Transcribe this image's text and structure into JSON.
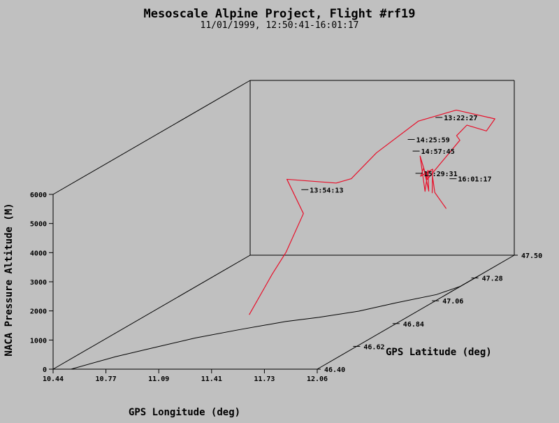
{
  "chart_data": {
    "type": "line",
    "projection": "3d",
    "title": "Mesoscale Alpine Project, Flight #rf19",
    "subtitle": "11/01/1999, 12:50:41-16:01:17",
    "xlabel": "GPS Longitude (deg)",
    "ylabel": "GPS Latitude (deg)",
    "zlabel": "NACA Pressure Altitude (M)",
    "xlim": [
      10.44,
      12.06
    ],
    "ylim": [
      46.4,
      47.5
    ],
    "zlim": [
      0,
      6000
    ],
    "x_ticks": [
      "10.44",
      "10.77",
      "11.09",
      "11.41",
      "11.73",
      "12.06"
    ],
    "y_ticks": [
      "46.40",
      "46.62",
      "46.84",
      "47.06",
      "47.28",
      "47.50"
    ],
    "z_ticks": [
      "0",
      "1000",
      "2000",
      "3000",
      "4000",
      "5000",
      "6000"
    ],
    "grid": false,
    "colors": {
      "flight_track": "#e8102a",
      "ground_track": "#000000",
      "background": "#c0c0c0"
    },
    "series": [
      {
        "points": [
          [
            11.39,
            46.63,
            1050
          ],
          [
            11.41,
            46.74,
            2050
          ],
          [
            11.43,
            46.8,
            2600
          ],
          [
            11.36,
            46.96,
            3350
          ],
          [
            11.05,
            47.15,
            3850
          ],
          [
            11.33,
            47.17,
            3650
          ],
          [
            11.5,
            47.1,
            4050
          ],
          [
            11.72,
            47.04,
            5150
          ],
          [
            11.78,
            47.22,
            5600
          ],
          [
            11.88,
            47.34,
            5550
          ],
          [
            12.04,
            47.41,
            5000
          ],
          [
            11.9,
            47.49,
            4300
          ],
          [
            11.78,
            47.49,
            4500
          ],
          [
            11.86,
            47.36,
            4600
          ],
          [
            11.99,
            47.26,
            4800
          ],
          [
            12.02,
            47.05,
            4200
          ],
          [
            11.79,
            47.22,
            4400
          ],
          [
            12.04,
            47.02,
            3900
          ],
          [
            11.86,
            47.2,
            3980
          ],
          [
            12.03,
            47.05,
            3800
          ],
          [
            11.79,
            47.24,
            3920
          ],
          [
            11.76,
            47.25,
            3600
          ],
          [
            11.79,
            47.29,
            3700
          ],
          [
            11.93,
            47.16,
            3350
          ],
          [
            11.8,
            47.28,
            3500
          ],
          [
            11.88,
            47.22,
            3150
          ],
          [
            12.06,
            47.12,
            2950
          ]
        ]
      }
    ],
    "ground_track": [
      [
        10.55,
        46.4
      ],
      [
        10.69,
        46.52
      ],
      [
        10.85,
        46.62
      ],
      [
        10.98,
        46.7
      ],
      [
        11.16,
        46.78
      ],
      [
        11.36,
        46.86
      ],
      [
        11.52,
        46.9
      ],
      [
        11.7,
        46.96
      ],
      [
        11.84,
        47.04
      ],
      [
        12.0,
        47.12
      ],
      [
        12.06,
        47.2
      ],
      [
        12.06,
        47.3
      ]
    ],
    "annotations": [
      {
        "label": "13:22:27",
        "x": 11.65,
        "y": 47.48,
        "z": 4800
      },
      {
        "label": "14:25:59",
        "x": 11.59,
        "y": 47.38,
        "z": 4400
      },
      {
        "label": "14:57:45",
        "x": 11.62,
        "y": 47.38,
        "z": 4000
      },
      {
        "label": "13:54:13",
        "x": 11.3,
        "y": 47.05,
        "z": 3850
      },
      {
        "label": "15:29:31",
        "x": 11.78,
        "y": 47.25,
        "z": 3700
      },
      {
        "label": "16:01:17",
        "x": 12.0,
        "y": 47.24,
        "z": 3550
      }
    ]
  }
}
